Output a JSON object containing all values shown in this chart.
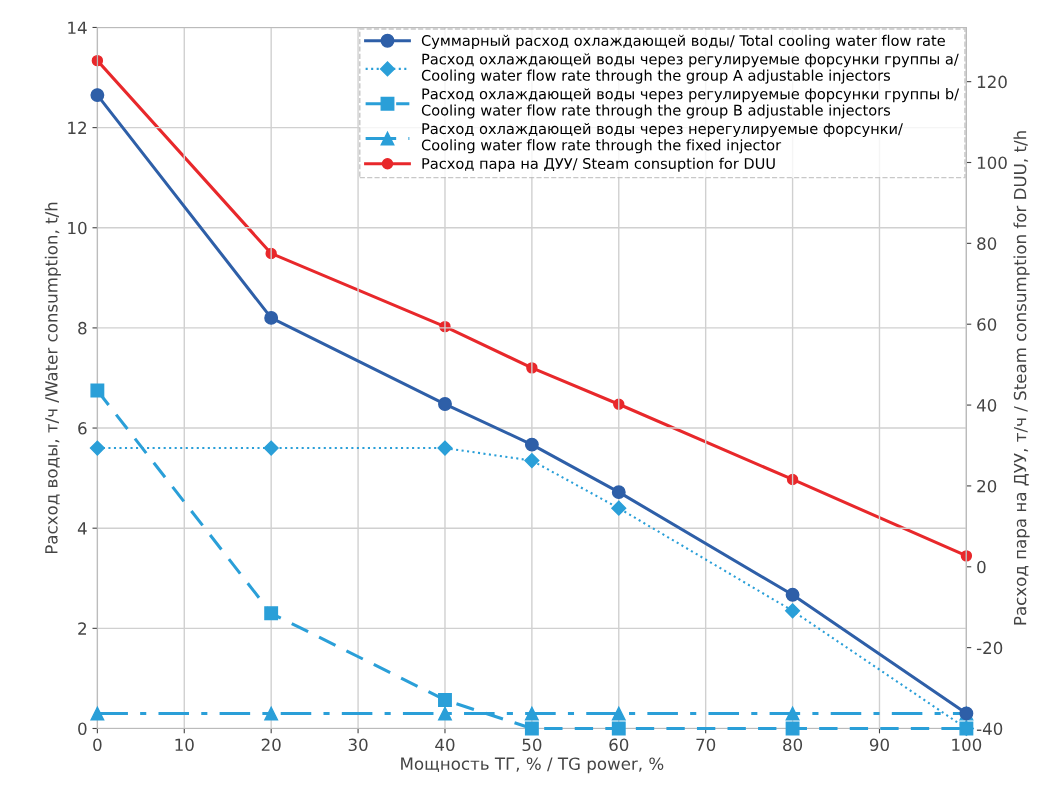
{
  "chart_data": {
    "type": "line",
    "xlabel": "Мощность ТГ, % / TG power, %",
    "ylabel": "Расход воды, т/ч /Water consumption, t/h",
    "y2label": "Расход пара на ДУУ, т/ч / Steam consumption for DUU, t/h",
    "x": [
      0,
      20,
      40,
      50,
      60,
      80,
      100
    ],
    "xlim": [
      0,
      100
    ],
    "xticks": [
      0,
      10,
      20,
      30,
      40,
      50,
      60,
      70,
      80,
      90,
      100
    ],
    "ylim": [
      0,
      14
    ],
    "yticks": [
      0,
      2,
      4,
      6,
      8,
      10,
      12,
      14
    ],
    "y2lim": [
      -40,
      133.4
    ],
    "y2ticks": [
      -40,
      -20,
      0,
      20,
      40,
      60,
      80,
      100,
      120
    ],
    "grid": true,
    "legend": "top right",
    "series": [
      {
        "name": "Суммарный расход охлаждающей воды/ Total cooling water flow rate",
        "color": "#2e5fa8",
        "marker": "circle",
        "line_style": "solid",
        "values": [
          12.65,
          8.2,
          6.48,
          5.67,
          4.72,
          2.67,
          0.3
        ]
      },
      {
        "name": "Расход охлаждающей воды через регулируемые форсунки группы а/\nCooling water flow rate through the group A adjustable injectors",
        "color": "#2a9fd8",
        "marker": "diamond",
        "line_style": "dotted",
        "values": [
          5.6,
          5.6,
          5.6,
          5.35,
          4.4,
          2.35,
          0
        ]
      },
      {
        "name": "Расход охлаждающей воды через регулируемые форсунки группы b/\nCooling water flow rate through the group B adjustable injectors",
        "color": "#2a9fd8",
        "marker": "square",
        "line_style": "dashed",
        "values": [
          6.75,
          2.3,
          0.57,
          0,
          0,
          0,
          0
        ]
      },
      {
        "name": "Расход охлаждающей воды через нерегулируемые форсунки/\nCooling water flow rate through the fixed injector",
        "color": "#2a9fd8",
        "marker": "triangle",
        "line_style": "dashdot",
        "values": [
          0.3,
          0.3,
          0.3,
          0.3,
          0.3,
          0.3,
          0.3
        ]
      },
      {
        "name": "Расход пара на ДУУ/ Steam consuption for DUU",
        "color": "#e8282b",
        "marker": "circle",
        "line_style": "solid",
        "axis": "y2",
        "values": [
          125.2,
          77.5,
          59.4,
          49.2,
          40.2,
          21.6,
          2.7
        ]
      }
    ]
  }
}
